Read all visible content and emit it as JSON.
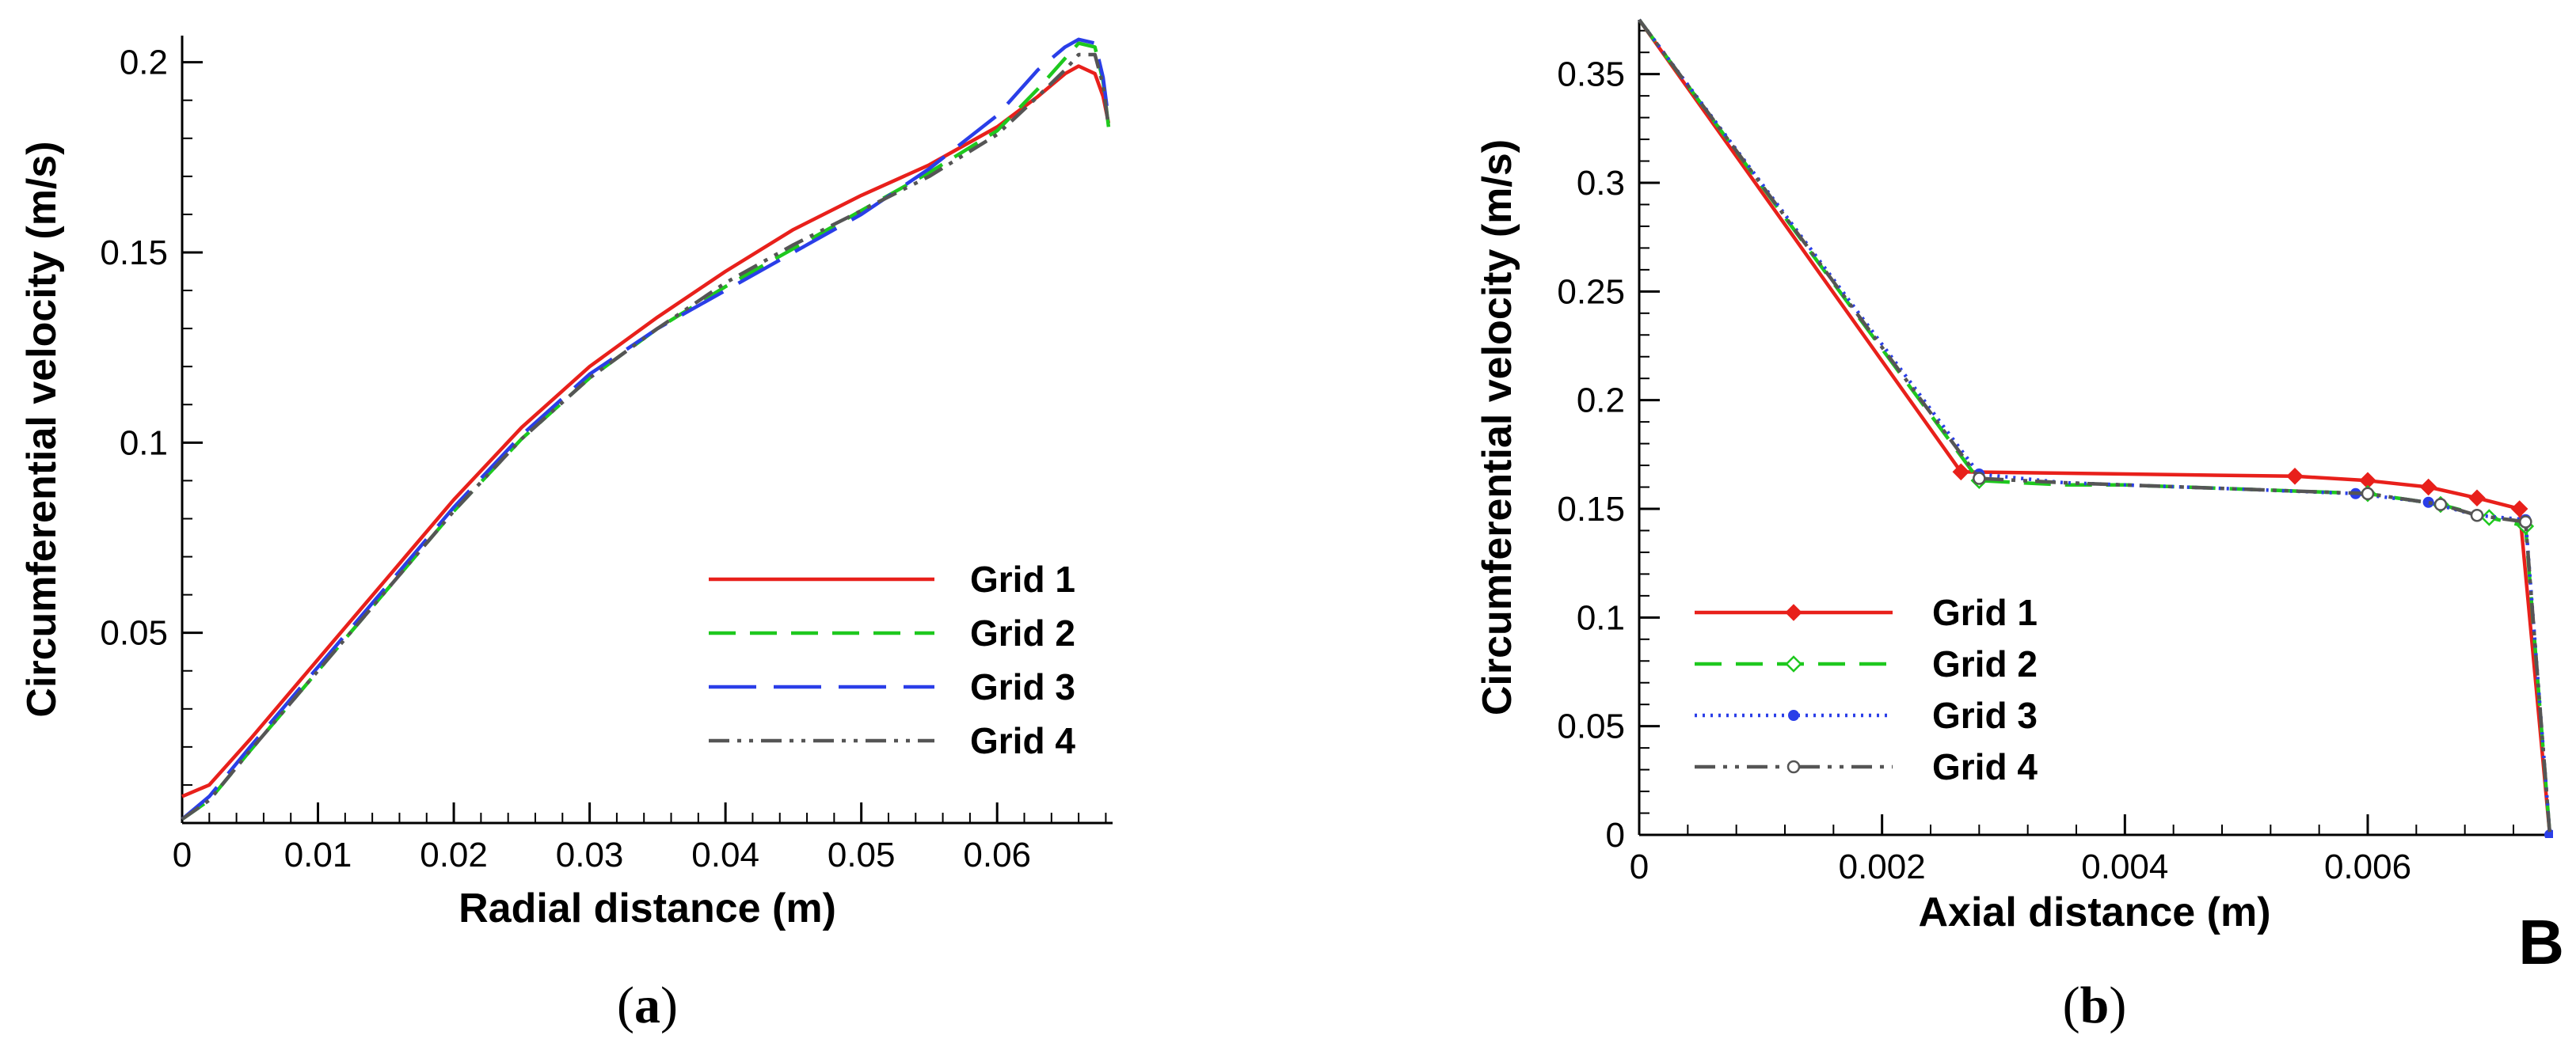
{
  "figure": {
    "panel_letter": "B"
  },
  "chart_data": [
    {
      "type": "line",
      "id": "a",
      "caption": "(a)",
      "caption_parts": [
        "(",
        "a",
        ")"
      ],
      "xlabel": "Radial distance (m)",
      "ylabel": "Circumferential velocity (m/s)",
      "xlim": [
        0,
        0.0685
      ],
      "ylim": [
        0,
        0.207
      ],
      "x_ticks": [
        0,
        0.01,
        0.02,
        0.03,
        0.04,
        0.05,
        0.06
      ],
      "x_tick_labels": [
        "0",
        "0.01",
        "0.02",
        "0.03",
        "0.04",
        "0.05",
        "0.06"
      ],
      "y_ticks": [
        0.05,
        0.1,
        0.15,
        0.2
      ],
      "y_tick_labels": [
        "0.05",
        "0.1",
        "0.15",
        "0.2"
      ],
      "legend_position": "bottom-right",
      "series": [
        {
          "name": "Grid 1",
          "color": "#e8201b",
          "dash": "solid",
          "x": [
            0,
            0.002,
            0.005,
            0.01,
            0.015,
            0.02,
            0.025,
            0.03,
            0.035,
            0.04,
            0.045,
            0.05,
            0.055,
            0.06,
            0.063,
            0.065,
            0.066,
            0.0672,
            0.0678,
            0.0682
          ],
          "y": [
            0.007,
            0.01,
            0.022,
            0.043,
            0.064,
            0.085,
            0.104,
            0.12,
            0.133,
            0.145,
            0.156,
            0.165,
            0.173,
            0.183,
            0.191,
            0.197,
            0.199,
            0.197,
            0.191,
            0.184
          ]
        },
        {
          "name": "Grid 2",
          "color": "#1ec81e",
          "dash": "dashed",
          "x": [
            0,
            0.002,
            0.005,
            0.01,
            0.015,
            0.02,
            0.025,
            0.03,
            0.035,
            0.04,
            0.045,
            0.05,
            0.055,
            0.06,
            0.063,
            0.065,
            0.066,
            0.0672,
            0.0678,
            0.0682
          ],
          "y": [
            0.001,
            0.006,
            0.019,
            0.04,
            0.061,
            0.082,
            0.101,
            0.117,
            0.13,
            0.141,
            0.151,
            0.161,
            0.171,
            0.182,
            0.193,
            0.201,
            0.205,
            0.204,
            0.195,
            0.183
          ]
        },
        {
          "name": "Grid 3",
          "color": "#2a3ee8",
          "dash": "long-dashed",
          "x": [
            0,
            0.002,
            0.005,
            0.01,
            0.015,
            0.02,
            0.025,
            0.03,
            0.035,
            0.04,
            0.045,
            0.05,
            0.055,
            0.06,
            0.063,
            0.065,
            0.066,
            0.0672,
            0.0678,
            0.0682
          ],
          "y": [
            0.001,
            0.007,
            0.02,
            0.041,
            0.062,
            0.083,
            0.102,
            0.118,
            0.13,
            0.14,
            0.15,
            0.16,
            0.172,
            0.186,
            0.198,
            0.204,
            0.206,
            0.205,
            0.196,
            0.185
          ]
        },
        {
          "name": "Grid 4",
          "color": "#555555",
          "dash": "dash-dot-dot",
          "x": [
            0,
            0.002,
            0.005,
            0.01,
            0.015,
            0.02,
            0.025,
            0.03,
            0.035,
            0.04,
            0.045,
            0.05,
            0.055,
            0.06,
            0.063,
            0.065,
            0.066,
            0.0672,
            0.0678,
            0.0682
          ],
          "y": [
            0.001,
            0.006,
            0.019,
            0.04,
            0.061,
            0.082,
            0.101,
            0.117,
            0.13,
            0.142,
            0.152,
            0.161,
            0.17,
            0.181,
            0.191,
            0.198,
            0.202,
            0.202,
            0.194,
            0.183
          ]
        }
      ]
    },
    {
      "type": "line",
      "id": "b",
      "caption": "(b)",
      "caption_parts": [
        "(",
        "b",
        ")"
      ],
      "xlabel": "Axial distance (m)",
      "ylabel": "Circumferential velocity (m/s)",
      "xlim": [
        0,
        0.0075
      ],
      "ylim": [
        0,
        0.375
      ],
      "x_ticks": [
        0,
        0.002,
        0.004,
        0.006
      ],
      "x_tick_labels": [
        "0",
        "0.002",
        "0.004",
        "0.006"
      ],
      "y_ticks": [
        0,
        0.05,
        0.1,
        0.15,
        0.2,
        0.25,
        0.3,
        0.35
      ],
      "y_tick_labels": [
        "0",
        "0.05",
        "0.1",
        "0.15",
        "0.2",
        "0.25",
        "0.3",
        "0.35"
      ],
      "legend_position": "bottom-left",
      "series": [
        {
          "name": "Grid 1",
          "color": "#e8201b",
          "dash": "solid",
          "marker": "diamond",
          "x": [
            0,
            0.00265,
            0.0054,
            0.006,
            0.0065,
            0.0069,
            0.00725,
            0.0074,
            0.0075
          ],
          "y": [
            0.375,
            0.167,
            0.165,
            0.163,
            0.16,
            0.155,
            0.15,
            0.06,
            0.0
          ],
          "marker_idx": [
            1,
            2,
            3,
            4,
            5,
            6
          ]
        },
        {
          "name": "Grid 2",
          "color": "#1ec81e",
          "dash": "dashed",
          "marker": "diamond-open",
          "x": [
            0,
            0.0028,
            0.0035,
            0.004,
            0.005,
            0.006,
            0.0066,
            0.007,
            0.0073,
            0.0075
          ],
          "y": [
            0.375,
            0.163,
            0.161,
            0.161,
            0.159,
            0.157,
            0.152,
            0.146,
            0.142,
            0.0
          ],
          "marker_idx": [
            1,
            5,
            6,
            7,
            8
          ]
        },
        {
          "name": "Grid 3",
          "color": "#2a3ee8",
          "dash": "dotted",
          "marker": "dot",
          "x": [
            0,
            0.0028,
            0.0035,
            0.004,
            0.005,
            0.0059,
            0.0065,
            0.0069,
            0.0073,
            0.0075
          ],
          "y": [
            0.375,
            0.166,
            0.162,
            0.161,
            0.159,
            0.157,
            0.153,
            0.147,
            0.145,
            0.0
          ],
          "marker_idx": [
            1,
            5,
            6,
            7,
            8,
            9
          ]
        },
        {
          "name": "Grid 4",
          "color": "#555555",
          "dash": "dash-dot-dot",
          "marker": "circle-open",
          "x": [
            0,
            0.0028,
            0.0035,
            0.004,
            0.005,
            0.006,
            0.0066,
            0.0069,
            0.0073,
            0.0075
          ],
          "y": [
            0.375,
            0.164,
            0.162,
            0.161,
            0.159,
            0.157,
            0.152,
            0.147,
            0.144,
            0.0
          ],
          "marker_idx": [
            1,
            5,
            6,
            7,
            8
          ]
        }
      ]
    }
  ]
}
